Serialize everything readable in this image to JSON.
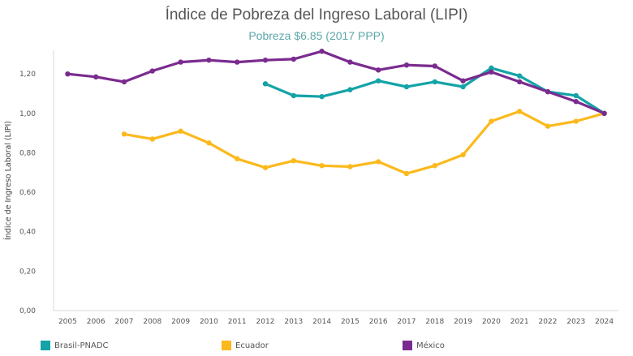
{
  "chart_data": {
    "type": "line",
    "title": "Índice de Pobreza del Ingreso Laboral (LIPI)",
    "subtitle": "Pobreza $6.85 (2017 PPP)",
    "ylabel": "Índice de Ingreso Laboral (LIPI)",
    "xlabel": "",
    "ylim": [
      0,
      1.32
    ],
    "yticks": [
      "0,00",
      "0,20",
      "0,40",
      "0,60",
      "0,80",
      "1,00",
      "1,20"
    ],
    "ytick_values": [
      0,
      0.2,
      0.4,
      0.6,
      0.8,
      1.0,
      1.2
    ],
    "x": [
      "2005",
      "2006",
      "2007",
      "2008",
      "2009",
      "2010",
      "2011",
      "2012",
      "2013",
      "2014",
      "2015",
      "2016",
      "2017",
      "2018",
      "2019",
      "2020",
      "2021",
      "2022",
      "2023",
      "2024"
    ],
    "grid": false,
    "legend_position": "bottom",
    "series": [
      {
        "name": "Brasil-PNADC",
        "color": "#13a3a8",
        "values": [
          null,
          null,
          null,
          null,
          null,
          null,
          null,
          1.15,
          1.09,
          1.085,
          1.12,
          1.165,
          1.135,
          1.16,
          1.135,
          1.23,
          1.19,
          1.11,
          1.09,
          1.0
        ]
      },
      {
        "name": "Ecuador",
        "color": "#fbb91d",
        "values": [
          null,
          null,
          0.895,
          0.87,
          0.91,
          0.85,
          0.77,
          0.725,
          0.76,
          0.735,
          0.73,
          0.755,
          0.695,
          0.735,
          0.79,
          0.96,
          1.01,
          0.935,
          0.96,
          1.0
        ]
      },
      {
        "name": "México",
        "color": "#7a2b8f",
        "values": [
          1.2,
          1.185,
          1.16,
          1.215,
          1.26,
          1.27,
          1.26,
          1.27,
          1.275,
          1.315,
          1.26,
          1.22,
          1.245,
          1.24,
          1.165,
          1.21,
          1.16,
          1.11,
          1.06,
          1.0
        ]
      }
    ]
  }
}
